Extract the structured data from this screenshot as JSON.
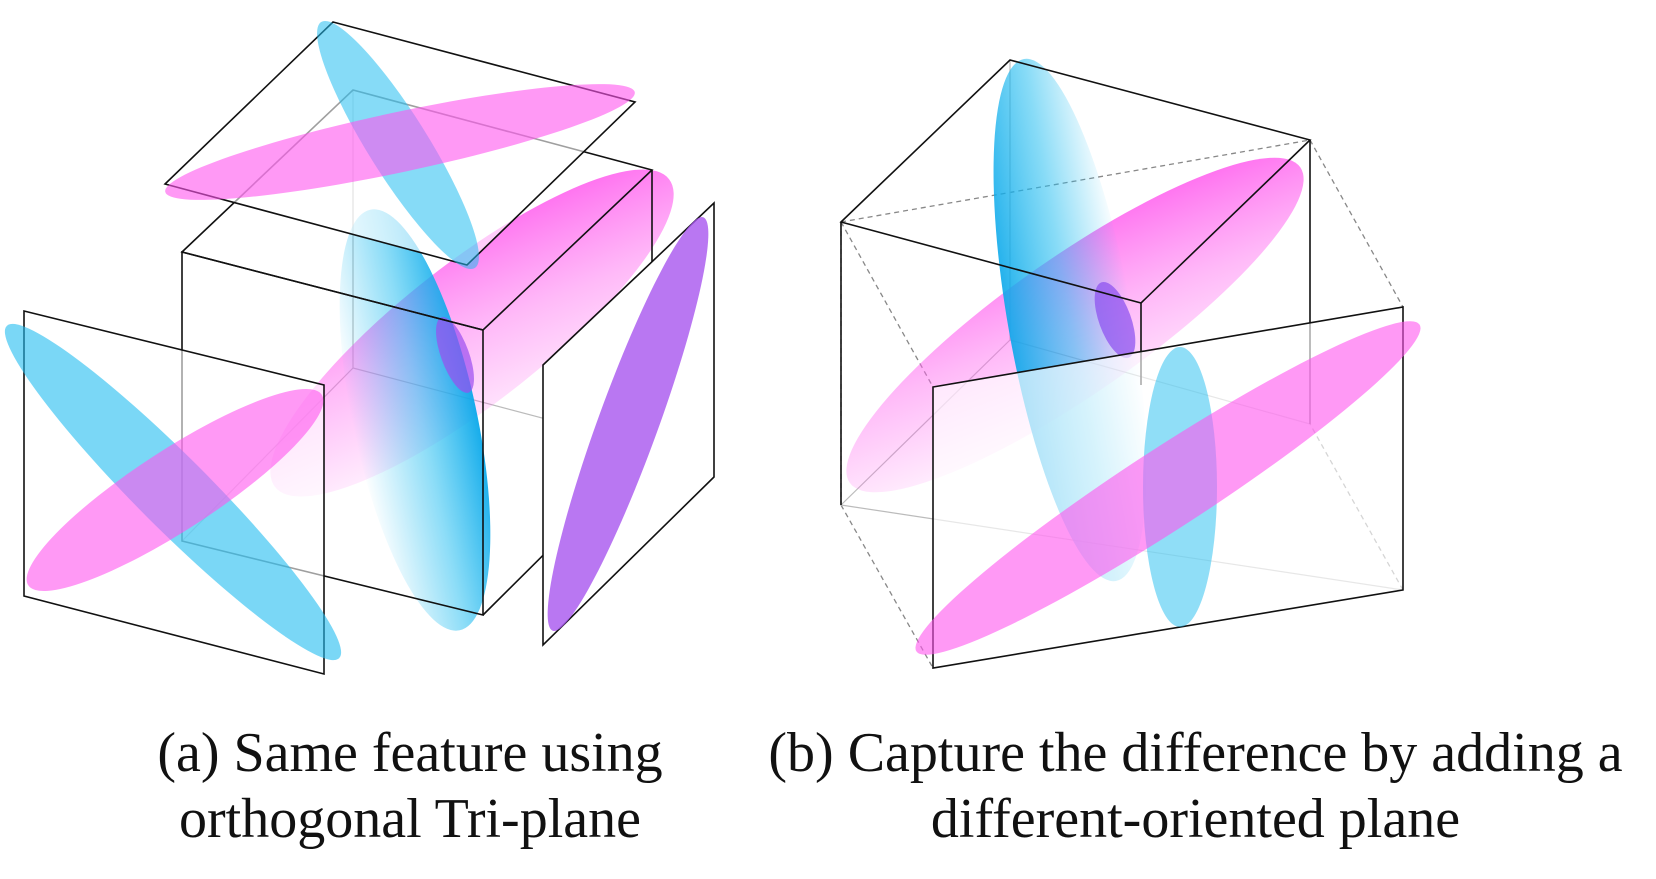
{
  "panel_a": {
    "caption_line1": "(a) Same feature using",
    "caption_line2": "orthogonal Tri-plane"
  },
  "panel_b": {
    "caption_line1": "(b) Capture the difference by adding a",
    "caption_line2": "different-oriented plane"
  },
  "colors": {
    "cyan": "#22bdf0",
    "magenta": "#ff66f0",
    "purple": "#a855ef",
    "line": "#111111",
    "dashed": "#888888"
  }
}
